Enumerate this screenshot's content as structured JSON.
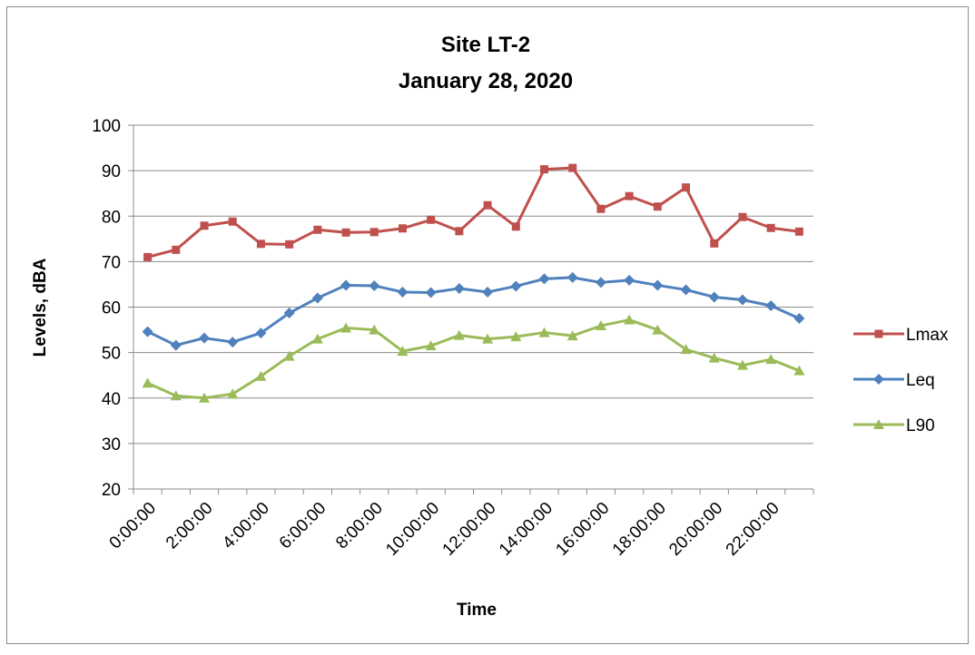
{
  "chart_data": {
    "type": "line",
    "title": [
      "Site LT-2",
      "January 28, 2020"
    ],
    "xlabel": "Time",
    "ylabel": "Levels, dBA",
    "ylim": [
      20,
      100
    ],
    "ystep": 10,
    "grid": "horizontal",
    "legend_position": "right",
    "x": [
      "0:00:00",
      "1:00:00",
      "2:00:00",
      "3:00:00",
      "4:00:00",
      "5:00:00",
      "6:00:00",
      "7:00:00",
      "8:00:00",
      "9:00:00",
      "10:00:00",
      "11:00:00",
      "12:00:00",
      "13:00:00",
      "14:00:00",
      "15:00:00",
      "16:00:00",
      "17:00:00",
      "18:00:00",
      "19:00:00",
      "20:00:00",
      "21:00:00",
      "22:00:00",
      "23:00:00"
    ],
    "x_tick_labels": [
      "0:00:00",
      "2:00:00",
      "4:00:00",
      "6:00:00",
      "8:00:00",
      "10:00:00",
      "12:00:00",
      "14:00:00",
      "16:00:00",
      "18:00:00",
      "20:00:00",
      "22:00:00"
    ],
    "series": [
      {
        "name": "Lmax",
        "color": "#c0504d",
        "marker": "square",
        "values": [
          71.0,
          72.6,
          77.9,
          78.8,
          73.9,
          73.8,
          77.0,
          76.4,
          76.5,
          77.3,
          79.2,
          76.7,
          82.4,
          77.7,
          90.3,
          90.6,
          81.6,
          84.4,
          82.1,
          86.3,
          74.0,
          79.8,
          77.4,
          76.6
        ]
      },
      {
        "name": "Leq",
        "color": "#4f81bd",
        "marker": "diamond",
        "values": [
          54.6,
          51.6,
          53.2,
          52.3,
          54.3,
          58.7,
          62.0,
          64.8,
          64.7,
          63.3,
          63.2,
          64.1,
          63.3,
          64.6,
          66.2,
          66.5,
          65.4,
          65.9,
          64.8,
          63.8,
          62.2,
          61.6,
          60.3,
          57.5
        ]
      },
      {
        "name": "L90",
        "color": "#9bbb59",
        "marker": "triangle",
        "values": [
          43.3,
          40.5,
          40.0,
          40.9,
          44.8,
          49.2,
          53.0,
          55.4,
          55.0,
          50.3,
          51.5,
          53.8,
          53.0,
          53.5,
          54.4,
          53.7,
          55.9,
          57.2,
          55.0,
          50.7,
          48.8,
          47.2,
          48.5,
          46.0
        ]
      }
    ]
  }
}
